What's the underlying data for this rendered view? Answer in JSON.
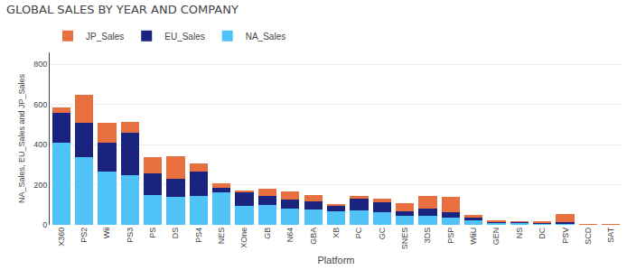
{
  "chart_data": {
    "type": "bar",
    "stacked": true,
    "title": "GLOBAL SALES BY YEAR AND COMPANY",
    "xlabel": "Platform",
    "ylabel": "NA_Sales, EU_Sales and JP_Sales",
    "categories": [
      "X360",
      "PS2",
      "Wii",
      "PS3",
      "PS",
      "DS",
      "PS4",
      "NES",
      "XOne",
      "GB",
      "N64",
      "GBA",
      "XB",
      "PC",
      "GC",
      "SNES",
      "3DS",
      "PSP",
      "WiiU",
      "GEN",
      "NS",
      "DC",
      "PSV",
      "SCD",
      "SAT"
    ],
    "series": [
      {
        "name": "NA_Sales",
        "color": "#4FC3F7",
        "values": [
          411,
          339,
          264,
          246,
          149,
          140,
          144,
          160,
          96,
          97,
          80,
          75,
          67,
          72,
          63,
          46,
          46,
          38,
          22,
          8,
          10,
          8,
          5,
          0.4,
          0.5
        ]
      },
      {
        "name": "EU_Sales",
        "color": "#1A237E",
        "values": [
          147,
          171,
          148,
          215,
          109,
          90,
          123,
          25,
          67,
          46,
          48,
          42,
          30,
          57,
          50,
          20,
          35,
          26,
          16,
          9,
          4,
          4,
          10,
          0.3,
          0.3
        ]
      },
      {
        "name": "JP_Sales",
        "color": "#E87040",
        "values": [
          27,
          139,
          98,
          53,
          79,
          111,
          37,
          24,
          4,
          36,
          40,
          30,
          4,
          13,
          17,
          44,
          65,
          75,
          12,
          4,
          3,
          2,
          38,
          0.2,
          0.5
        ]
      }
    ],
    "ylim": [
      0,
      860
    ],
    "yticks": [
      0,
      200,
      400,
      600,
      800
    ],
    "grid": true,
    "legend": "top"
  }
}
